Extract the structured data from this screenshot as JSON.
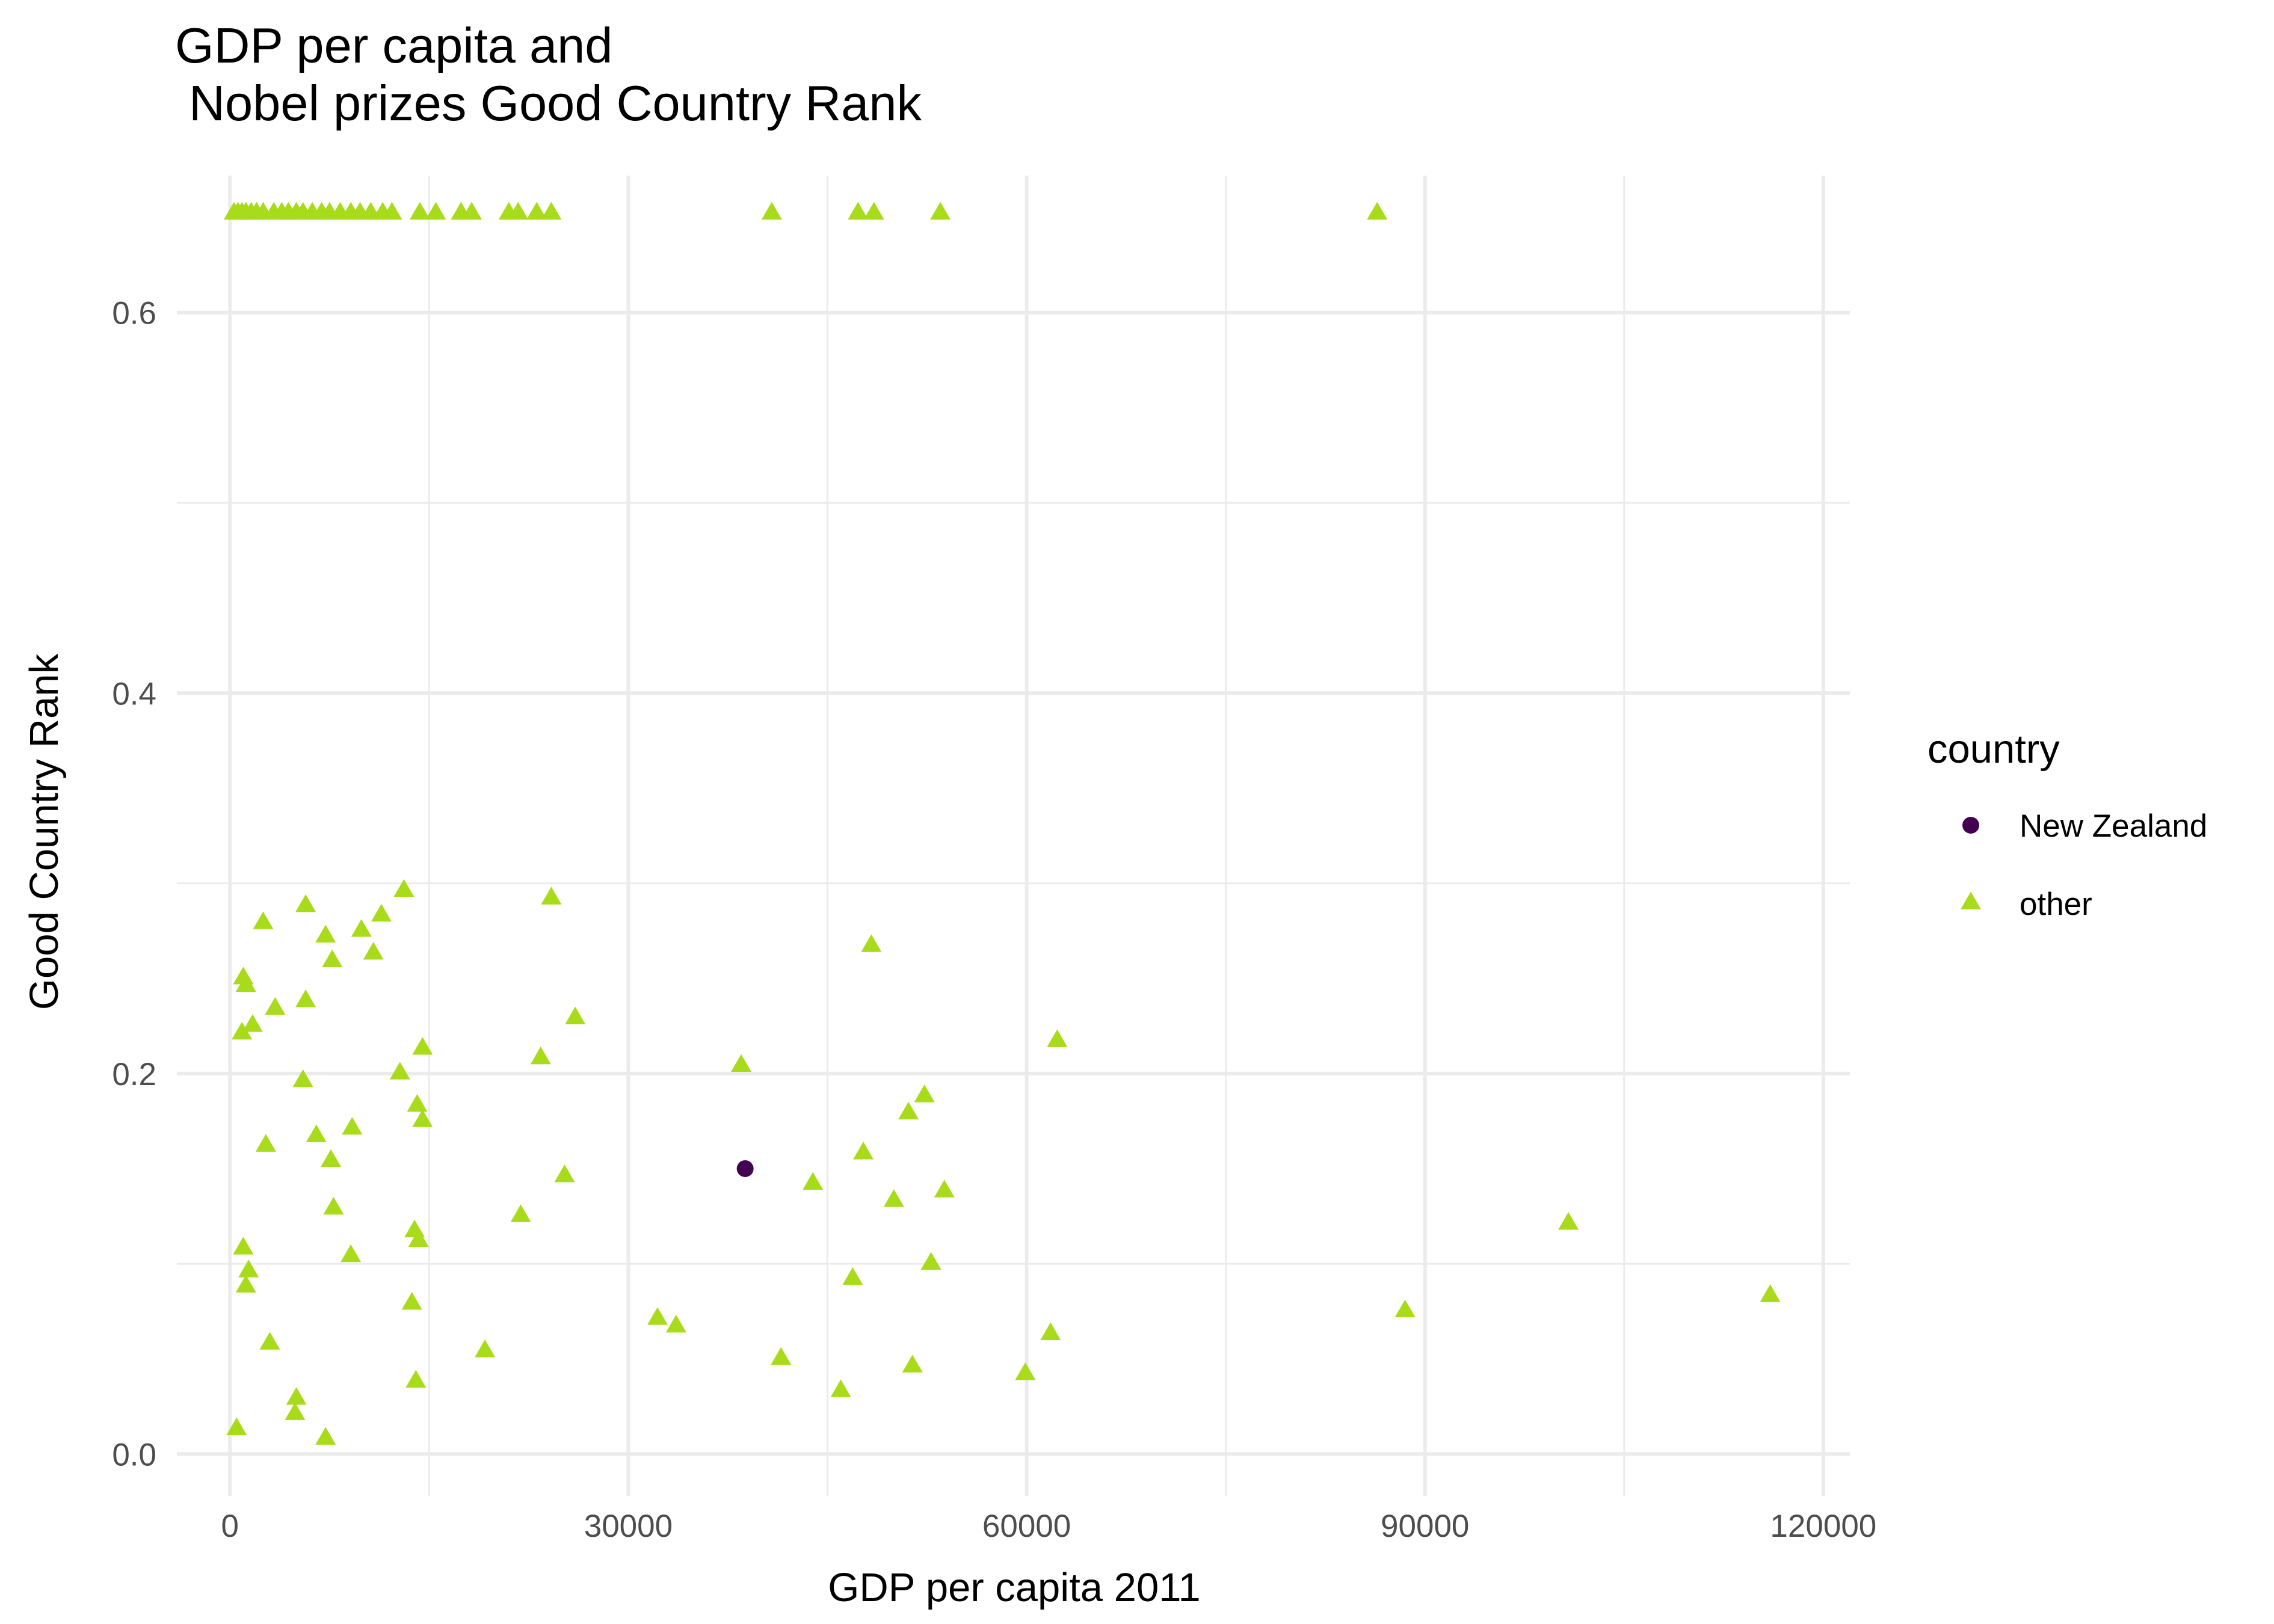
{
  "chart_data": {
    "type": "scatter",
    "title": "GDP per capita and\n Nobel prizes Good Country Rank",
    "xlabel": "GDP per capita 2011",
    "ylabel": "Good Country Rank",
    "xlim": [
      -4000,
      122000
    ],
    "ylim": [
      -0.022,
      0.672
    ],
    "x_ticks": [
      0,
      30000,
      60000,
      90000,
      120000
    ],
    "x_tick_labels": [
      "0",
      "30000",
      "60000",
      "90000",
      "120000"
    ],
    "y_ticks": [
      0.0,
      0.2,
      0.4,
      0.6
    ],
    "y_tick_labels": [
      "0.0",
      "0.2",
      "0.4",
      "0.6"
    ],
    "x_minor_ticks": [
      15000,
      45000,
      75000,
      105000
    ],
    "y_minor_ticks": [
      0.1,
      0.3,
      0.5
    ],
    "grid": true,
    "legend": {
      "title": "country",
      "position": "right"
    },
    "series": [
      {
        "name": "New Zealand",
        "marker": "circle",
        "color": "#440154",
        "points": [
          [
            38800,
            0.15
          ]
        ]
      },
      {
        "name": "other",
        "marker": "triangle",
        "color": "#A8DB1A",
        "points": [
          [
            300,
            0.652
          ],
          [
            600,
            0.652
          ],
          [
            900,
            0.652
          ],
          [
            1200,
            0.652
          ],
          [
            1600,
            0.652
          ],
          [
            2000,
            0.652
          ],
          [
            2500,
            0.652
          ],
          [
            3300,
            0.652
          ],
          [
            3900,
            0.652
          ],
          [
            4400,
            0.652
          ],
          [
            5000,
            0.652
          ],
          [
            5500,
            0.652
          ],
          [
            6200,
            0.652
          ],
          [
            6900,
            0.652
          ],
          [
            7500,
            0.652
          ],
          [
            8300,
            0.652
          ],
          [
            9100,
            0.652
          ],
          [
            9800,
            0.652
          ],
          [
            10600,
            0.652
          ],
          [
            11500,
            0.652
          ],
          [
            12200,
            0.652
          ],
          [
            14300,
            0.652
          ],
          [
            15500,
            0.652
          ],
          [
            17400,
            0.652
          ],
          [
            18200,
            0.652
          ],
          [
            21000,
            0.652
          ],
          [
            21700,
            0.652
          ],
          [
            23100,
            0.652
          ],
          [
            24200,
            0.652
          ],
          [
            40800,
            0.652
          ],
          [
            47300,
            0.652
          ],
          [
            48500,
            0.652
          ],
          [
            53500,
            0.652
          ],
          [
            86400,
            0.652
          ],
          [
            13100,
            0.296
          ],
          [
            24200,
            0.292
          ],
          [
            5700,
            0.288
          ],
          [
            11400,
            0.283
          ],
          [
            2500,
            0.279
          ],
          [
            9900,
            0.275
          ],
          [
            7200,
            0.272
          ],
          [
            48300,
            0.267
          ],
          [
            10800,
            0.263
          ],
          [
            7700,
            0.259
          ],
          [
            1000,
            0.25
          ],
          [
            1200,
            0.246
          ],
          [
            5700,
            0.238
          ],
          [
            3400,
            0.234
          ],
          [
            26000,
            0.229
          ],
          [
            1700,
            0.225
          ],
          [
            900,
            0.221
          ],
          [
            62300,
            0.217
          ],
          [
            14500,
            0.213
          ],
          [
            23400,
            0.208
          ],
          [
            38500,
            0.204
          ],
          [
            12800,
            0.2
          ],
          [
            5500,
            0.196
          ],
          [
            52300,
            0.188
          ],
          [
            14100,
            0.183
          ],
          [
            51100,
            0.179
          ],
          [
            14500,
            0.175
          ],
          [
            9200,
            0.171
          ],
          [
            6500,
            0.167
          ],
          [
            2700,
            0.162
          ],
          [
            47700,
            0.158
          ],
          [
            7600,
            0.154
          ],
          [
            25200,
            0.146
          ],
          [
            43900,
            0.142
          ],
          [
            53800,
            0.138
          ],
          [
            50000,
            0.133
          ],
          [
            7800,
            0.129
          ],
          [
            21900,
            0.125
          ],
          [
            100800,
            0.121
          ],
          [
            13900,
            0.117
          ],
          [
            14200,
            0.112
          ],
          [
            1000,
            0.108
          ],
          [
            9100,
            0.104
          ],
          [
            52800,
            0.1
          ],
          [
            1400,
            0.096
          ],
          [
            46900,
            0.092
          ],
          [
            1200,
            0.088
          ],
          [
            13700,
            0.079
          ],
          [
            88500,
            0.075
          ],
          [
            116000,
            0.083
          ],
          [
            32200,
            0.071
          ],
          [
            33600,
            0.067
          ],
          [
            61800,
            0.063
          ],
          [
            3000,
            0.058
          ],
          [
            19200,
            0.054
          ],
          [
            41500,
            0.05
          ],
          [
            51400,
            0.046
          ],
          [
            59900,
            0.042
          ],
          [
            14000,
            0.038
          ],
          [
            46000,
            0.033
          ],
          [
            5000,
            0.029
          ],
          [
            4900,
            0.021
          ],
          [
            500,
            0.013
          ],
          [
            7200,
            0.008
          ]
        ]
      }
    ]
  }
}
